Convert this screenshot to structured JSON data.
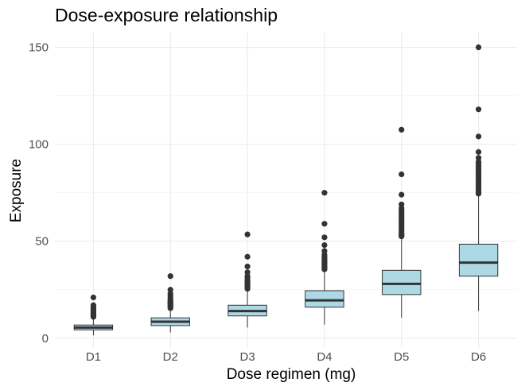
{
  "chart_data": {
    "type": "boxplot",
    "title": "Dose-exposure relationship",
    "xlabel": "Dose regimen (mg)",
    "ylabel": "Exposure",
    "ylim": [
      -5,
      158
    ],
    "yticks": [
      0,
      50,
      100,
      150
    ],
    "grid": true,
    "box_color": "#add8e6",
    "line_color": "#333333",
    "categories": [
      "D1",
      "D2",
      "D3",
      "D4",
      "D5",
      "D6"
    ],
    "boxes": [
      {
        "category": "D1",
        "whisker_low": 1.5,
        "q1": 4.3,
        "median": 5.5,
        "q3": 6.8,
        "whisker_high": 10.5,
        "outliers": [
          11,
          11.5,
          12,
          12.5,
          13,
          13.5,
          14,
          14.5,
          15,
          15.5,
          16,
          17,
          21
        ]
      },
      {
        "category": "D2",
        "whisker_low": 3,
        "q1": 6.5,
        "median": 8.5,
        "q3": 10.5,
        "whisker_high": 15,
        "outliers": [
          15.5,
          16,
          16.5,
          17,
          17.5,
          18,
          18.5,
          19,
          19.5,
          20,
          21,
          22,
          23,
          25,
          32
        ]
      },
      {
        "category": "D3",
        "whisker_low": 5.5,
        "q1": 11.5,
        "median": 14,
        "q3": 17,
        "whisker_high": 25,
        "outliers": [
          25.5,
          26,
          26.5,
          27,
          27.5,
          28,
          28.5,
          29,
          29.5,
          30,
          31,
          32,
          34,
          37,
          42,
          53.5
        ]
      },
      {
        "category": "D4",
        "whisker_low": 7,
        "q1": 16,
        "median": 19.5,
        "q3": 24.5,
        "whisker_high": 35,
        "outliers": [
          35.5,
          36,
          36.5,
          37,
          37.5,
          38,
          38.5,
          39,
          39.5,
          40,
          41,
          42,
          43,
          45,
          48,
          52,
          59,
          75
        ]
      },
      {
        "category": "D5",
        "whisker_low": 10.5,
        "q1": 22.5,
        "median": 28,
        "q3": 35,
        "whisker_high": 52,
        "outliers": [
          52.5,
          53,
          53.5,
          54,
          55,
          56,
          57,
          58,
          59,
          60,
          61,
          62,
          63,
          64,
          65,
          66,
          67,
          69,
          74,
          84.5,
          107.5
        ]
      },
      {
        "category": "D6",
        "whisker_low": 14,
        "q1": 32,
        "median": 39,
        "q3": 48.5,
        "whisker_high": 74,
        "outliers": [
          74.5,
          75,
          76,
          77,
          78,
          79,
          80,
          81,
          82,
          83,
          84,
          85,
          86,
          87,
          88,
          89,
          90,
          91,
          93,
          96,
          104,
          118,
          150
        ]
      }
    ]
  }
}
